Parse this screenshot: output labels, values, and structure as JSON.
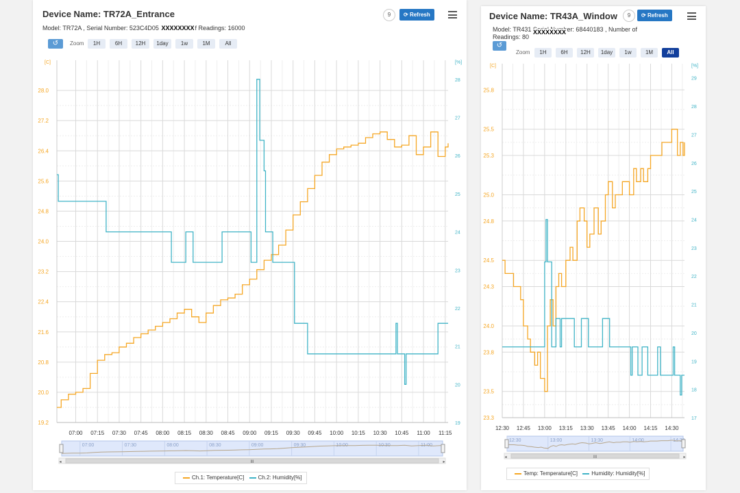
{
  "colors": {
    "temp": "#f5a623",
    "hum": "#3fb3c6",
    "accent": "#123f9c",
    "refresh": "#2677c4",
    "grid": "#d9d9d9"
  },
  "panel1": {
    "title": "Device Name: TR72A_Entrance",
    "model_text": "Model: TR72A , Serial Number: 523C4D05",
    "masked_text": "XXXXXXXX",
    "readings_text": "f Readings: 16000",
    "badge": "9",
    "refresh_label": "Refresh",
    "refresh_icon": "refresh-icon",
    "zoom_label": "Zoom",
    "zoom_buttons": [
      "1H",
      "6H",
      "12H",
      "1day",
      "1w",
      "1M",
      "All"
    ],
    "scroll_icon": "scrollbar-grip-icon",
    "scroll_grip": "III"
  },
  "panel2": {
    "title": "Device Name: TR43A_Window",
    "info_line1_a": "Model: TR431",
    "info_line1_b": "Serial Number: 68440183 , Number of",
    "masked_text": "XXXXXXXX",
    "info_line2": "Readings: 80",
    "badge": "9",
    "refresh_label": "Refresh",
    "refresh_icon": "refresh-icon",
    "zoom_label": "Zoom",
    "zoom_buttons": [
      "1H",
      "6H",
      "12H",
      "1day",
      "1w",
      "1M",
      "All"
    ],
    "scroll_icon": "scrollbar-grip-icon",
    "scroll_grip": "III"
  },
  "chart_data": [
    {
      "type": "line",
      "y_left_unit": "[C]",
      "y_right_unit": "[%]",
      "ylim_left": [
        19.2,
        28.8
      ],
      "ylim_right": [
        19,
        28.5
      ],
      "left_ticks": [
        19.2,
        20.0,
        20.8,
        21.6,
        22.4,
        23.2,
        24.0,
        24.8,
        25.6,
        26.4,
        27.2,
        28.0
      ],
      "right_ticks": [
        19,
        20,
        21,
        22,
        23,
        24,
        25,
        26,
        27,
        28
      ],
      "x_ticks": [
        "07:00",
        "07:15",
        "07:30",
        "07:45",
        "08:00",
        "08:15",
        "08:30",
        "08:45",
        "09:00",
        "09:15",
        "09:30",
        "09:45",
        "10:00",
        "10:15",
        "10:30",
        "10:45",
        "11:00",
        "11:15"
      ],
      "x_tick_minutes": [
        420,
        435,
        450,
        465,
        480,
        495,
        510,
        525,
        540,
        555,
        570,
        585,
        600,
        615,
        630,
        645,
        660,
        675
      ],
      "xlim_minutes": [
        407,
        677
      ],
      "navigator_labels": [
        "07:00",
        "07:30",
        "08:00",
        "08:30",
        "09:00",
        "09:30",
        "10:00",
        "10:30",
        "11:00"
      ],
      "navigator_minutes": [
        420,
        450,
        480,
        510,
        540,
        570,
        600,
        630,
        660
      ],
      "grid": true,
      "legend_position": "bottom",
      "series": [
        {
          "name": "Ch.1: Temperature[C]",
          "axis": "left",
          "color": "#f5a623",
          "x": [
            407,
            410,
            415,
            420,
            425,
            430,
            435,
            440,
            445,
            450,
            455,
            460,
            465,
            470,
            475,
            480,
            485,
            490,
            495,
            500,
            505,
            510,
            515,
            520,
            525,
            530,
            535,
            540,
            545,
            550,
            555,
            560,
            565,
            570,
            575,
            580,
            585,
            590,
            595,
            600,
            605,
            610,
            615,
            620,
            625,
            630,
            635,
            640,
            645,
            650,
            655,
            660,
            665,
            670,
            675,
            677
          ],
          "values": [
            19.6,
            19.8,
            19.95,
            20.0,
            20.1,
            20.5,
            20.85,
            21.0,
            21.05,
            21.2,
            21.3,
            21.45,
            21.55,
            21.65,
            21.75,
            21.85,
            21.95,
            22.1,
            22.2,
            22.0,
            21.85,
            22.1,
            22.3,
            22.45,
            22.5,
            22.6,
            22.85,
            23.0,
            23.25,
            23.5,
            23.65,
            23.9,
            24.3,
            24.7,
            25.05,
            25.4,
            25.75,
            26.1,
            26.3,
            26.45,
            26.5,
            26.55,
            26.6,
            26.75,
            26.85,
            26.9,
            26.7,
            26.5,
            26.55,
            26.8,
            26.3,
            26.5,
            26.9,
            26.25,
            26.5,
            26.6
          ]
        },
        {
          "name": "Ch.2: Humidity[%]",
          "axis": "right",
          "color": "#3fb3c6",
          "x": [
            407,
            408,
            408,
            420,
            440,
            441,
            465,
            470,
            475,
            478,
            480,
            482,
            485,
            486,
            495,
            496,
            500,
            501,
            510,
            515,
            520,
            521,
            540,
            541,
            542,
            545,
            547,
            550,
            551,
            555,
            556,
            560,
            561,
            570,
            571,
            575,
            576,
            580,
            581,
            590,
            595,
            600,
            605,
            610,
            620,
            625,
            630,
            640,
            641,
            642,
            643,
            647,
            648,
            650,
            651,
            660,
            670,
            677
          ],
          "values": [
            25.5,
            25.5,
            24.8,
            24.8,
            24.8,
            24.0,
            24.0,
            24.0,
            24.0,
            24.0,
            24.0,
            24.0,
            24.0,
            23.2,
            23.2,
            24.0,
            24.0,
            23.2,
            23.2,
            23.2,
            23.2,
            24.0,
            24.0,
            23.2,
            23.2,
            28.0,
            26.4,
            25.6,
            24.0,
            24.0,
            23.2,
            23.2,
            23.2,
            23.2,
            21.6,
            21.6,
            21.6,
            20.8,
            20.8,
            20.8,
            20.8,
            20.8,
            20.8,
            20.8,
            20.8,
            20.8,
            20.8,
            20.8,
            21.6,
            20.8,
            20.8,
            20.0,
            20.8,
            20.8,
            20.8,
            20.8,
            21.6,
            21.6
          ]
        }
      ]
    },
    {
      "type": "line",
      "y_left_unit": "[C]",
      "y_right_unit": "[%]",
      "ylim_left": [
        23.3,
        26.0
      ],
      "ylim_right": [
        17,
        29.5
      ],
      "left_ticks": [
        23.3,
        23.5,
        23.8,
        24.0,
        24.3,
        24.5,
        24.8,
        25.0,
        25.3,
        25.5,
        25.8
      ],
      "right_ticks": [
        17,
        18,
        19,
        20,
        21,
        22,
        23,
        24,
        25,
        26,
        27,
        28,
        29
      ],
      "x_ticks": [
        "12:30",
        "12:45",
        "13:00",
        "13:15",
        "13:30",
        "13:45",
        "14:00",
        "14:15",
        "14:30"
      ],
      "x_tick_minutes": [
        750,
        765,
        780,
        795,
        810,
        825,
        840,
        855,
        870
      ],
      "xlim_minutes": [
        750,
        879
      ],
      "navigator_labels": [
        "12:30",
        "13:00",
        "13:30",
        "14:00",
        "14:30"
      ],
      "navigator_minutes": [
        750,
        780,
        810,
        840,
        870
      ],
      "grid": true,
      "legend_position": "bottom",
      "series": [
        {
          "name": "Temp: Temperature[C]",
          "axis": "left",
          "color": "#f5a623",
          "x": [
            750,
            752,
            755,
            758,
            760,
            763,
            765,
            768,
            770,
            773,
            775,
            777,
            780,
            782,
            784,
            786,
            788,
            790,
            792,
            795,
            798,
            800,
            803,
            805,
            808,
            810,
            812,
            815,
            818,
            820,
            823,
            825,
            828,
            830,
            833,
            835,
            838,
            840,
            843,
            845,
            848,
            850,
            853,
            855,
            858,
            860,
            863,
            865,
            868,
            870,
            872,
            874,
            876,
            878,
            879
          ],
          "values": [
            24.5,
            24.4,
            24.4,
            24.3,
            24.3,
            24.2,
            24.0,
            23.9,
            23.8,
            23.7,
            23.8,
            23.6,
            23.5,
            24.0,
            24.2,
            24.0,
            24.3,
            24.4,
            24.3,
            24.5,
            24.6,
            24.5,
            24.8,
            24.9,
            24.8,
            24.6,
            24.7,
            24.9,
            24.7,
            24.8,
            25.0,
            25.1,
            24.9,
            25.0,
            25.0,
            25.1,
            25.1,
            25.0,
            25.2,
            25.1,
            25.2,
            25.1,
            25.2,
            25.3,
            25.3,
            25.3,
            25.4,
            25.4,
            25.4,
            25.5,
            25.5,
            25.3,
            25.4,
            25.3,
            25.4
          ]
        },
        {
          "name": "Humidity: Humidity[%]",
          "axis": "right",
          "color": "#3fb3c6",
          "x": [
            750,
            765,
            778,
            780,
            781,
            782,
            784,
            785,
            786,
            787,
            788,
            790,
            791,
            792,
            793,
            794,
            800,
            801,
            805,
            806,
            810,
            811,
            820,
            821,
            825,
            826,
            830,
            831,
            840,
            841,
            842,
            843,
            845,
            846,
            849,
            850,
            852,
            853,
            860,
            861,
            862,
            870,
            871,
            872,
            875,
            876,
            877,
            878,
            879
          ],
          "values": [
            19.5,
            19.5,
            19.5,
            22.5,
            24.0,
            22.5,
            22.5,
            19.5,
            19.5,
            19.5,
            20.5,
            20.5,
            19.5,
            20.5,
            20.5,
            20.5,
            20.5,
            19.5,
            19.5,
            20.5,
            20.5,
            19.5,
            19.5,
            20.5,
            20.5,
            19.5,
            19.5,
            19.5,
            19.5,
            18.5,
            19.5,
            19.5,
            19.5,
            18.5,
            19.5,
            19.5,
            19.5,
            18.5,
            19.5,
            19.5,
            18.5,
            18.5,
            19.5,
            18.5,
            18.5,
            17.8,
            18.5,
            18.5,
            18.5
          ]
        }
      ]
    }
  ]
}
